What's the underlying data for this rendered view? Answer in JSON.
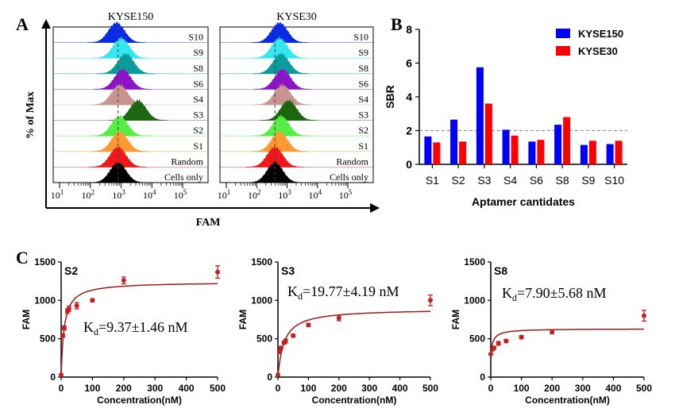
{
  "panel_labels": {
    "a": "A",
    "b": "B",
    "c": "C"
  },
  "colors": {
    "kyse150": "#0000FF",
    "kyse30": "#FF0000",
    "fit": "#A01818",
    "points": "#C02020",
    "hist": {
      "S10": "#0A2BE6",
      "S9": "#33E6F0",
      "S8": "#0A9C9C",
      "S6": "#8E12C8",
      "S4": "#C9938E",
      "S3": "#1D6610",
      "S2": "#55EE44",
      "S1": "#FF9A33",
      "Random": "#F01818",
      "Cells only": "#000000"
    }
  },
  "panel_a": {
    "ylabel": "% of Max",
    "xlabel": "FAM",
    "sample_labels": [
      "S10",
      "S9",
      "S8",
      "S6",
      "S4",
      "S3",
      "S2",
      "S1",
      "Random",
      "Cells only"
    ],
    "x_ticks": [
      {
        "base": "10",
        "exp": "1"
      },
      {
        "base": "10",
        "exp": "2"
      },
      {
        "base": "10",
        "exp": "3"
      },
      {
        "base": "10",
        "exp": "4"
      },
      {
        "base": "10",
        "exp": "5"
      }
    ],
    "plots": [
      {
        "title": "KYSE150",
        "peaks": [
          2.85,
          3.0,
          3.15,
          3.05,
          2.95,
          3.55,
          2.95,
          2.95,
          2.9,
          2.9
        ]
      },
      {
        "title": "KYSE30",
        "peaks": [
          2.75,
          2.75,
          2.8,
          2.85,
          2.85,
          3.05,
          2.8,
          2.75,
          2.6,
          2.6
        ]
      }
    ]
  },
  "chart_data": [
    {
      "type": "bar",
      "panel": "B",
      "title": "",
      "xlabel": "Aptamer cantidates",
      "ylabel": "SBR",
      "categories": [
        "S1",
        "S2",
        "S3",
        "S4",
        "S6",
        "S8",
        "S9",
        "S10"
      ],
      "series": [
        {
          "name": "KYSE150",
          "values": [
            1.65,
            2.65,
            5.75,
            2.05,
            1.35,
            2.35,
            1.15,
            1.2
          ]
        },
        {
          "name": "KYSE30",
          "values": [
            1.3,
            1.35,
            3.6,
            1.7,
            1.45,
            2.8,
            1.4,
            1.4
          ]
        }
      ],
      "ylim": [
        0,
        8
      ],
      "yticks": [
        0,
        2,
        4,
        6,
        8
      ],
      "reference_line": 2,
      "legend": "top-right"
    },
    {
      "type": "scatter",
      "panel": "C",
      "title": "S2",
      "xlabel": "Concentration(nM)",
      "ylabel": "FAM",
      "x": [
        0,
        5,
        10,
        20,
        25,
        50,
        100,
        200,
        500
      ],
      "y": [
        30,
        540,
        640,
        860,
        890,
        930,
        1000,
        1260,
        1370
      ],
      "errors": [
        0,
        20,
        25,
        30,
        35,
        40,
        20,
        45,
        80
      ],
      "fit": {
        "model": "one-site binding",
        "Bmax": 1240,
        "Kd": 9.37,
        "offset": 0
      },
      "kd_label": {
        "prefix": "K",
        "sub": "d",
        "value": "=9.37±1.46 nM"
      },
      "xlim": [
        0,
        500
      ],
      "ylim": [
        0,
        1500
      ],
      "xticks": [
        0,
        100,
        200,
        300,
        400,
        500
      ],
      "yticks": [
        0,
        500,
        1000,
        1500
      ]
    },
    {
      "type": "scatter",
      "panel": "C",
      "title": "S3",
      "xlabel": "Concentration(nM)",
      "ylabel": "FAM",
      "x": [
        0,
        5,
        10,
        20,
        25,
        50,
        100,
        200,
        500
      ],
      "y": [
        30,
        330,
        380,
        450,
        470,
        540,
        680,
        770,
        1000
      ],
      "errors": [
        0,
        15,
        20,
        20,
        25,
        20,
        20,
        35,
        70
      ],
      "fit": {
        "model": "one-site binding",
        "Bmax": 890,
        "Kd": 19.77,
        "offset": 0
      },
      "kd_label": {
        "prefix": "K",
        "sub": "d",
        "value": "=19.77±4.19 nM"
      },
      "xlim": [
        0,
        500
      ],
      "ylim": [
        0,
        1500
      ],
      "xticks": [
        0,
        100,
        200,
        300,
        400,
        500
      ],
      "yticks": [
        0,
        500,
        1000,
        1500
      ]
    },
    {
      "type": "scatter",
      "panel": "C",
      "title": "S8",
      "xlabel": "Concentration(nM)",
      "ylabel": "FAM",
      "x": [
        0,
        5,
        10,
        25,
        50,
        100,
        200,
        500
      ],
      "y": [
        300,
        360,
        380,
        440,
        470,
        520,
        590,
        800
      ],
      "errors": [
        0,
        15,
        20,
        25,
        20,
        20,
        25,
        70
      ],
      "fit": {
        "model": "one-site binding",
        "Bmax": 330,
        "Kd": 7.9,
        "offset": 300
      },
      "kd_label": {
        "prefix": "K",
        "sub": "d",
        "value": "=7.90±5.68 nM"
      },
      "xlim": [
        0,
        500
      ],
      "ylim": [
        0,
        1500
      ],
      "xticks": [
        0,
        100,
        200,
        300,
        400,
        500
      ],
      "yticks": [
        0,
        500,
        1000,
        1500
      ]
    }
  ]
}
